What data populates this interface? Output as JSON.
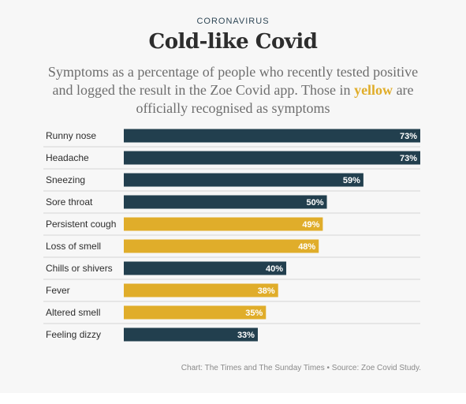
{
  "kicker": "CORONAVIRUS",
  "title": "Cold-like Covid",
  "subtitle": {
    "before": "Symptoms as a percentage of people who recently tested positive and logged the result in the Zoe Covid app. Those in ",
    "highlight": "yellow",
    "after": " are officially recognised as symptoms"
  },
  "colors": {
    "default_bar": "#223f4e",
    "official_bar": "#e0ad2a",
    "divider": "#d6d6d6"
  },
  "chart_data": {
    "type": "bar",
    "orientation": "horizontal",
    "title": "Cold-like Covid",
    "unit": "%",
    "xlim": [
      0,
      73
    ],
    "categories": [
      "Runny nose",
      "Headache",
      "Sneezing",
      "Sore throat",
      "Persistent cough",
      "Loss of smell",
      "Chills or shivers",
      "Fever",
      "Altered smell",
      "Feeling dizzy"
    ],
    "values": [
      73,
      73,
      59,
      50,
      49,
      48,
      40,
      38,
      35,
      33
    ],
    "value_labels": [
      "73%",
      "73%",
      "59%",
      "50%",
      "49%",
      "48%",
      "40%",
      "38%",
      "35%",
      "33%"
    ],
    "officially_recognised": [
      false,
      false,
      false,
      false,
      true,
      true,
      false,
      true,
      true,
      false
    ]
  },
  "source": "Chart: The Times and The Sunday Times • Source: Zoe Covid Study."
}
